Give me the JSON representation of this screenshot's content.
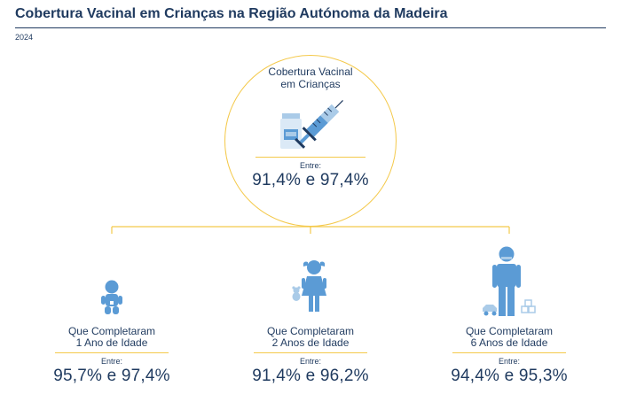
{
  "header": {
    "title": "Cobertura Vacinal em Crianças na Região Autónoma da Madeira",
    "year": "2024"
  },
  "main": {
    "label_line1": "Cobertura Vacinal",
    "label_line2": "em Crianças",
    "range_prefix": "Entre:",
    "range_value": "91,4% e 97,4%",
    "icon": "vaccine-syringe-vial-icon"
  },
  "groups": [
    {
      "label_line1": "Que Completaram",
      "label_line2": "1 Ano de Idade",
      "range_prefix": "Entre:",
      "range_value": "95,7% e 97,4%",
      "icon": "baby-icon"
    },
    {
      "label_line1": "Que Completaram",
      "label_line2": "2 Anos de Idade",
      "range_prefix": "Entre:",
      "range_value": "91,4% e 96,2%",
      "icon": "toddler-girl-icon"
    },
    {
      "label_line1": "Que Completaram",
      "label_line2": "6 Anos de Idade",
      "range_prefix": "Entre:",
      "range_value": "94,4% e 95,3%",
      "icon": "child-icon"
    }
  ],
  "colors": {
    "text": "#1f3a5f",
    "accent": "#f4c94b",
    "icon": "#5b9bd5",
    "icon_light": "#aacbe8"
  }
}
